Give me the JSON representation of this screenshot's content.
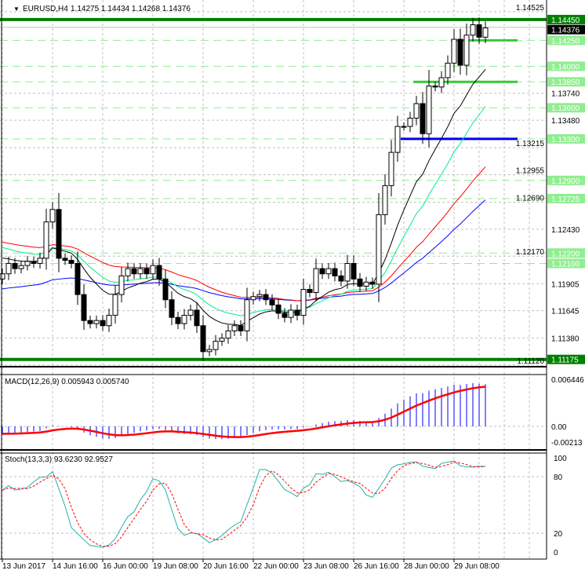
{
  "header": {
    "symbol": "EURUSD,H4",
    "ohlc": "1.14275 1.14434 1.14268 1.14376"
  },
  "price_axis": {
    "ticks": [
      "1.14525",
      "1.13740",
      "1.13480",
      "1.13215",
      "1.12955",
      "1.12690",
      "1.12430",
      "1.12170",
      "1.11905",
      "1.11645",
      "1.11380",
      "1.11120"
    ],
    "current_price": "1.14376",
    "strong_levels": [
      "1.14450",
      "1.11175"
    ],
    "levels": [
      "1.14250",
      "1.14000",
      "1.13850",
      "1.13600",
      "1.13300",
      "1.12900",
      "1.12725",
      "1.12200",
      "1.12100"
    ]
  },
  "segments": [
    {
      "price": 1.1425,
      "color": "#33cc33",
      "from_bar": 72
    },
    {
      "price": 1.1385,
      "color": "#33cc33",
      "from_bar": 66
    },
    {
      "price": 1.133,
      "color": "#0000ee",
      "from_bar": 64
    }
  ],
  "colors": {
    "bull": "#ffffff",
    "bear": "#000000",
    "level": "#90ee90",
    "strong": "#008000",
    "ma_black": "#000000",
    "ma_green": "#00ee88",
    "ma_red": "#ff0000",
    "ma_blue": "#0000ff",
    "macd_hist": "#0000ff",
    "macd_signal": "#ff0000",
    "stoch_main": "#20b2aa",
    "stoch_signal": "#ff0000"
  },
  "closes": [
    1.12,
    1.121,
    1.1205,
    1.1208,
    1.1212,
    1.121,
    1.1215,
    1.125,
    1.1262,
    1.1215,
    1.1213,
    1.121,
    1.118,
    1.1155,
    1.1152,
    1.1155,
    1.115,
    1.116,
    1.118,
    1.1198,
    1.1205,
    1.12,
    1.1205,
    1.12,
    1.1208,
    1.1195,
    1.1175,
    1.1158,
    1.1152,
    1.116,
    1.1165,
    1.115,
    1.1125,
    1.1127,
    1.1135,
    1.1138,
    1.1145,
    1.115,
    1.1145,
    1.1175,
    1.1178,
    1.118,
    1.1175,
    1.117,
    1.1162,
    1.1158,
    1.1165,
    1.116,
    1.1185,
    1.1182,
    1.1205,
    1.12,
    1.1205,
    1.1198,
    1.1193,
    1.121,
    1.1195,
    1.1188,
    1.1192,
    1.119,
    1.1257,
    1.1285,
    1.1317,
    1.1342,
    1.1342,
    1.135,
    1.1364,
    1.1335,
    1.1381,
    1.138,
    1.1389,
    1.1403,
    1.1426,
    1.1401,
    1.143,
    1.144,
    1.1428,
    1.1437
  ],
  "macd": {
    "label": "MACD(12,26,9) 0.005943 0.005740",
    "ticks": [
      "0.006446",
      "0.00",
      "-0.00213"
    ]
  },
  "stoch": {
    "label": "Stoch(13,3,3) 93.6230 92.9527",
    "ticks": [
      "100",
      "80",
      "20",
      "0"
    ]
  },
  "dates": [
    "13 Jun 2017",
    "14 Jun 16:00",
    "16 Jun 00:00",
    "19 Jun 08:00",
    "20 Jun 16:00",
    "22 Jun 00:00",
    "23 Jun 08:00",
    "26 Jun 16:00",
    "28 Jun 00:00",
    "29 Jun 08:00"
  ]
}
